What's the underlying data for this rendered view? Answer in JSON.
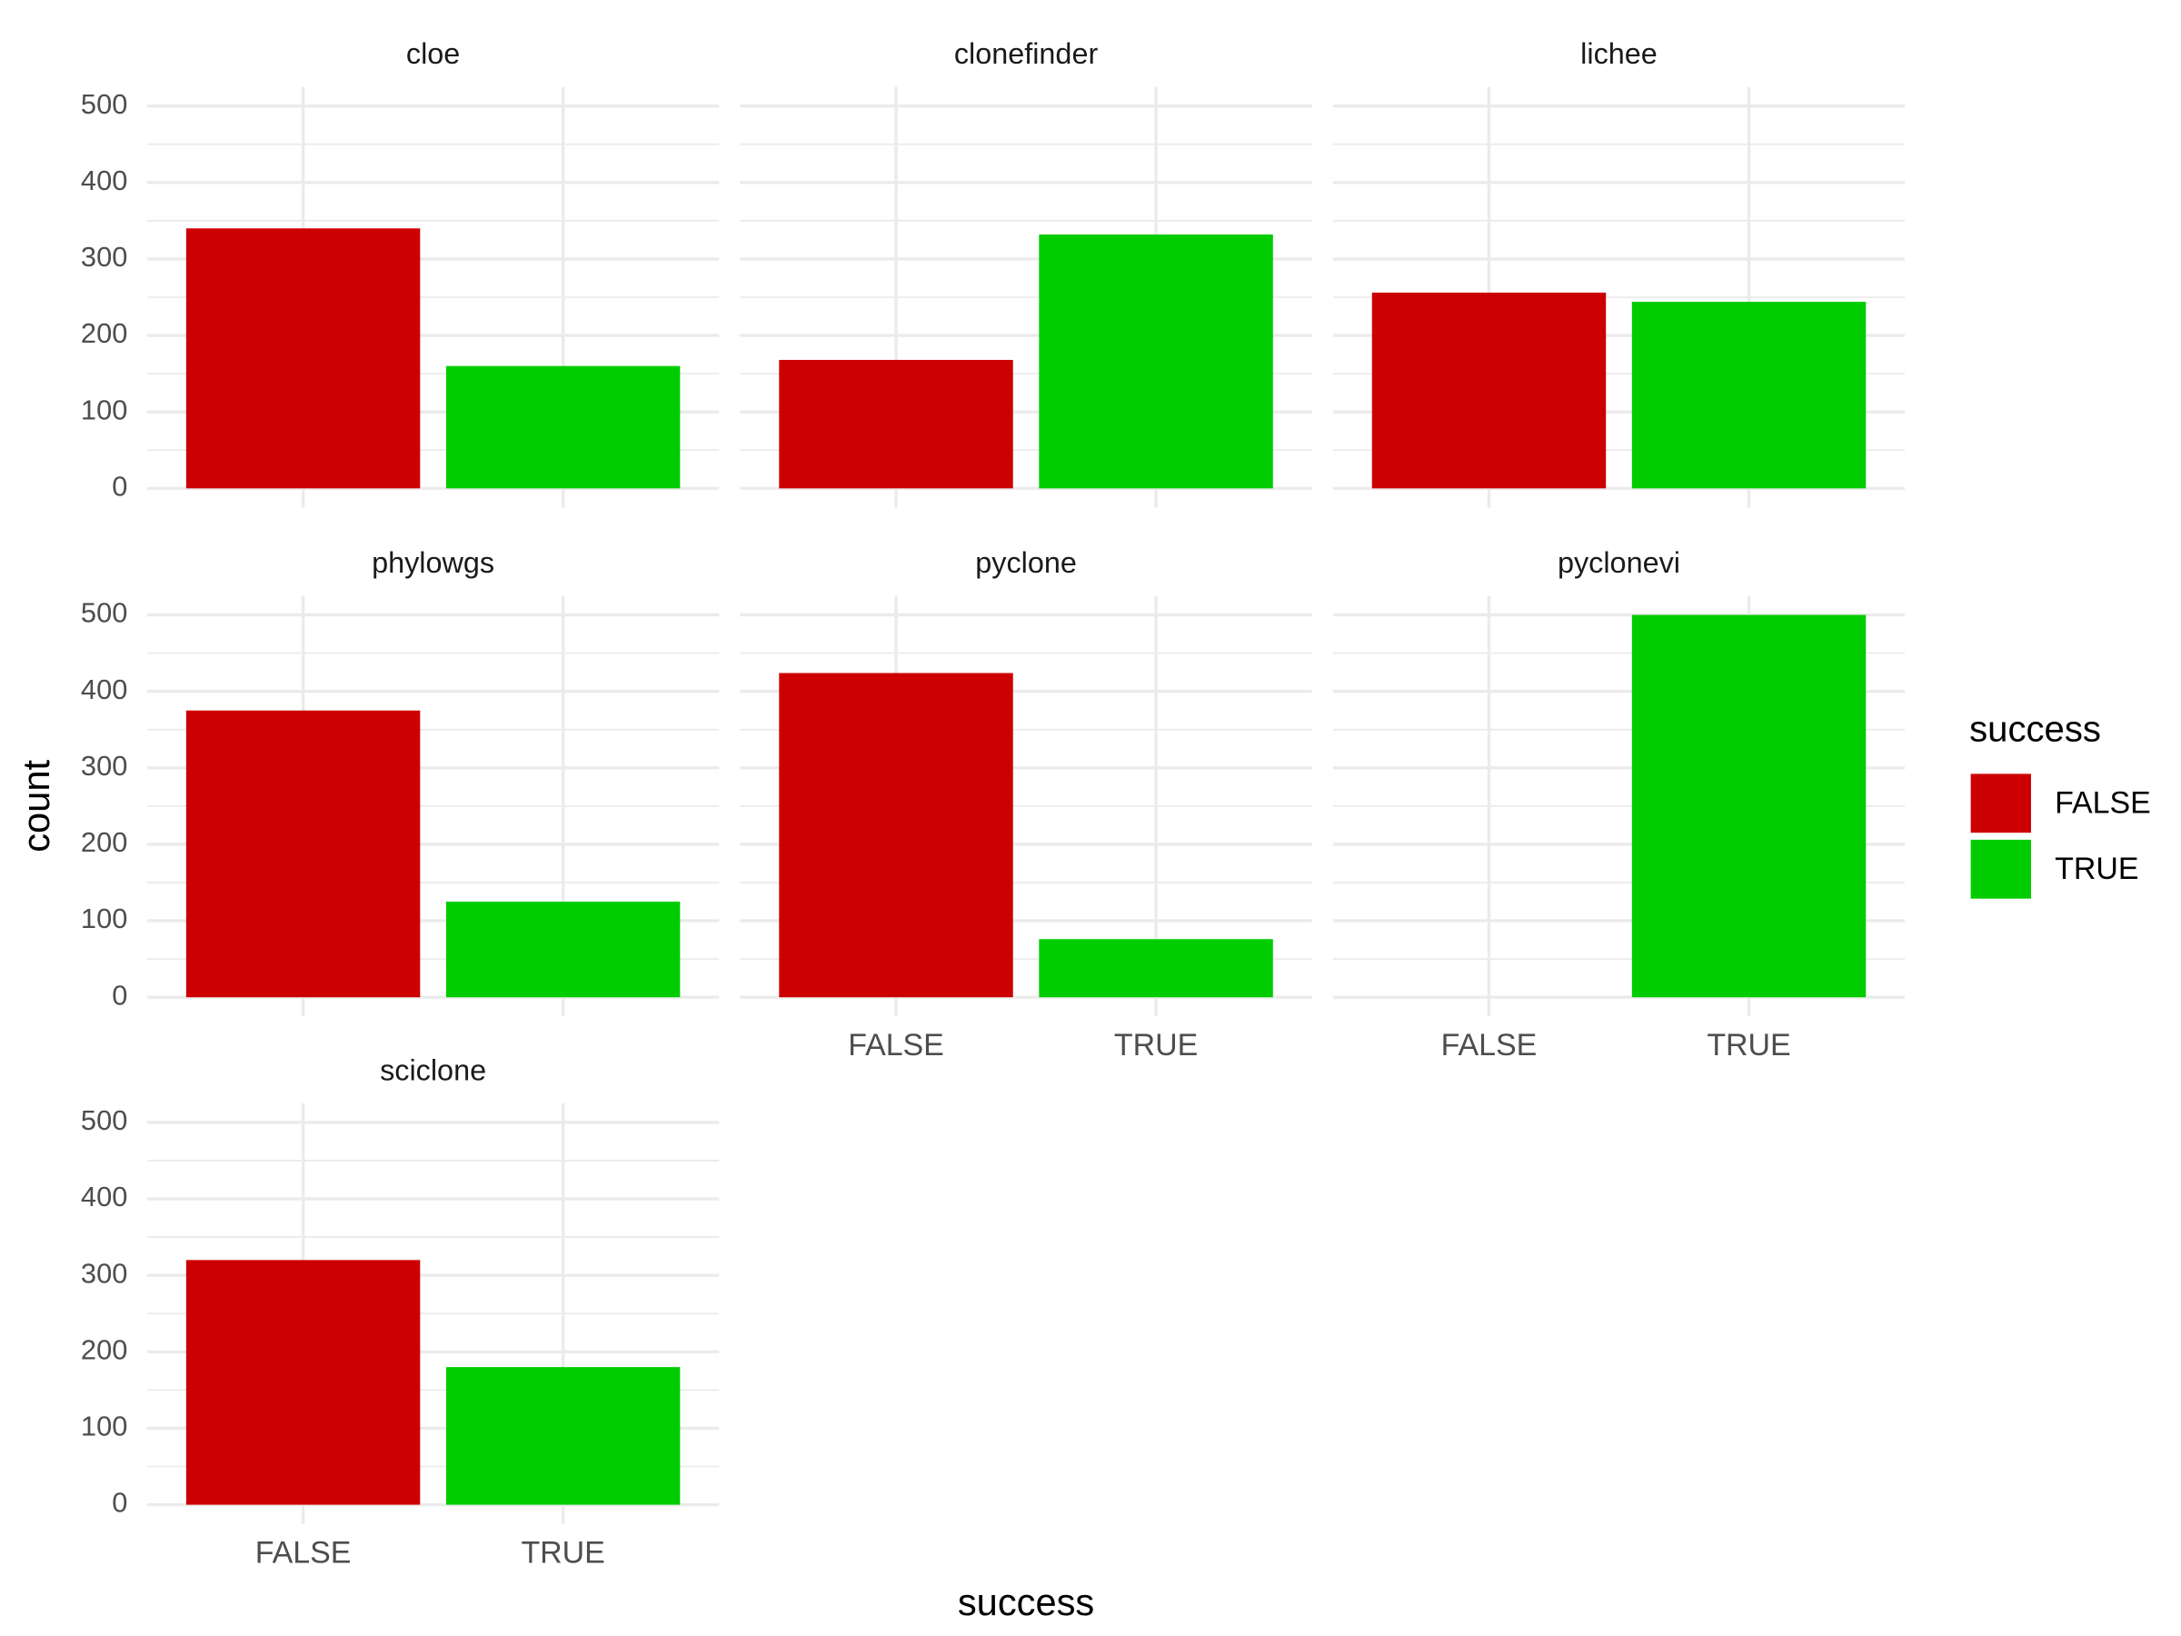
{
  "chart_data": {
    "type": "bar",
    "xlabel": "success",
    "ylabel": "count",
    "legend_title": "success",
    "categories": [
      "FALSE",
      "TRUE"
    ],
    "colors": [
      "#cc0000",
      "#00cc00"
    ],
    "ylim": [
      -25,
      525
    ],
    "yticks": [
      0,
      100,
      200,
      300,
      400,
      500
    ],
    "grid": true,
    "facets": [
      {
        "title": "cloe",
        "values": [
          340,
          160
        ]
      },
      {
        "title": "clonefinder",
        "values": [
          168,
          332
        ]
      },
      {
        "title": "lichee",
        "values": [
          256,
          244
        ]
      },
      {
        "title": "phylowgs",
        "values": [
          375,
          125
        ]
      },
      {
        "title": "pyclone",
        "values": [
          424,
          76
        ]
      },
      {
        "title": "pyclonevi",
        "values": [
          0,
          500
        ]
      },
      {
        "title": "sciclone",
        "values": [
          320,
          180
        ]
      }
    ]
  }
}
